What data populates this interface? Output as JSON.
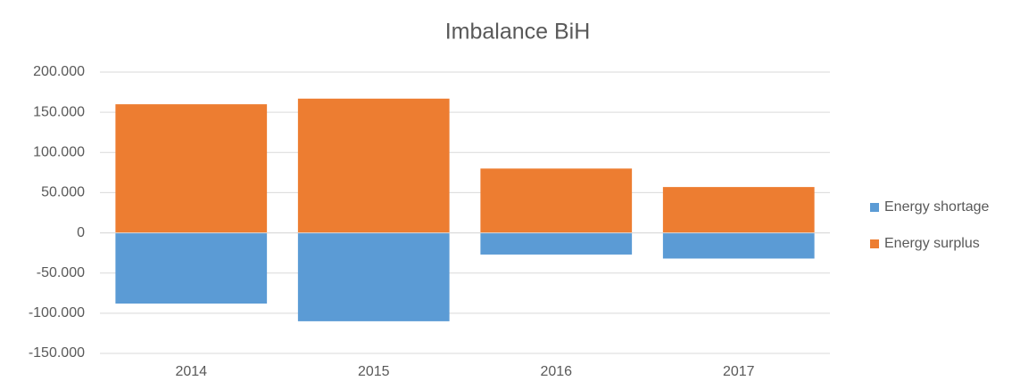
{
  "chart_data": {
    "type": "bar",
    "stacked": true,
    "title": "Imbalance BiH",
    "categories": [
      "2014",
      "2015",
      "2016",
      "2017"
    ],
    "series": [
      {
        "name": "Energy shortage",
        "color": "#5b9bd5",
        "values": [
          -88000,
          -110000,
          -27000,
          -32000
        ]
      },
      {
        "name": "Energy surplus",
        "color": "#ed7d31",
        "values": [
          160000,
          167000,
          80000,
          57000
        ]
      }
    ],
    "ylim": [
      -150000,
      200000
    ],
    "yticks": [
      {
        "value": -150000,
        "label": "-150.000"
      },
      {
        "value": -100000,
        "label": "-100.000"
      },
      {
        "value": -50000,
        "label": "-50.000"
      },
      0,
      {
        "value": 50000,
        "label": "50.000"
      },
      {
        "value": 100000,
        "label": "100.000"
      },
      {
        "value": 150000,
        "label": "150.000"
      },
      {
        "value": 200000,
        "label": "200.000"
      }
    ],
    "grid": true,
    "legend": "right"
  }
}
